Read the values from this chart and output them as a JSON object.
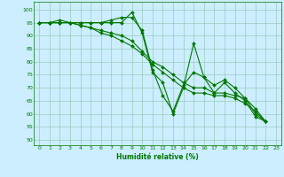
{
  "title": "",
  "xlabel": "Humidité relative (%)",
  "ylabel": "",
  "bg_color": "#cceeff",
  "grid_color": "#99ccbb",
  "line_color": "#007700",
  "xlim": [
    -0.5,
    23.5
  ],
  "ylim": [
    48,
    103
  ],
  "xticks": [
    0,
    1,
    2,
    3,
    4,
    5,
    6,
    7,
    8,
    9,
    10,
    11,
    12,
    13,
    14,
    15,
    16,
    17,
    18,
    19,
    20,
    21,
    22,
    23
  ],
  "yticks": [
    50,
    55,
    60,
    65,
    70,
    75,
    80,
    85,
    90,
    95,
    100
  ],
  "series": [
    [
      95,
      95,
      95,
      95,
      95,
      95,
      95,
      95,
      95,
      99,
      91,
      76,
      72,
      60,
      70,
      87,
      74,
      68,
      72,
      68,
      65,
      59,
      57
    ],
    [
      95,
      95,
      96,
      95,
      95,
      95,
      95,
      96,
      97,
      97,
      92,
      77,
      67,
      61,
      71,
      76,
      74,
      71,
      73,
      70,
      66,
      60,
      57
    ],
    [
      95,
      95,
      95,
      95,
      94,
      93,
      92,
      91,
      90,
      88,
      84,
      80,
      78,
      75,
      72,
      70,
      70,
      68,
      68,
      67,
      66,
      62,
      57
    ],
    [
      95,
      95,
      95,
      95,
      94,
      93,
      91,
      90,
      88,
      86,
      83,
      79,
      76,
      73,
      70,
      68,
      68,
      67,
      67,
      66,
      64,
      61,
      57
    ]
  ],
  "x_values": [
    0,
    1,
    2,
    3,
    4,
    5,
    6,
    7,
    8,
    9,
    10,
    11,
    12,
    13,
    14,
    15,
    16,
    17,
    18,
    19,
    20,
    21,
    22
  ]
}
